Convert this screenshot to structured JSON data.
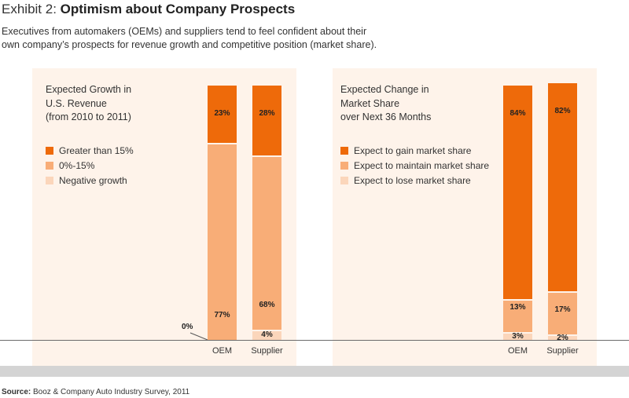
{
  "header": {
    "exhibit_prefix": "Exhibit 2: ",
    "exhibit_title": "Optimism about Company Prospects",
    "subtitle": "Executives from automakers (OEMs) and suppliers tend to feel confident about their own company’s prospects for revenue growth and competitive position (market share)."
  },
  "footer": {
    "source_label": "Source:",
    "source_text": " Booz & Company Auto Industry Survey, 2011"
  },
  "colors": {
    "dark": "#ee6a0a",
    "mid": "#f8ad77",
    "light": "#fbd6bb",
    "panel": "#fef3ea"
  },
  "chart_data": [
    {
      "type": "bar",
      "stacked": true,
      "title": "Expected Growth in\nU.S. Revenue\n(from 2010 to 2011)",
      "categories": [
        "OEM",
        "Supplier"
      ],
      "ylim": [
        0,
        100
      ],
      "series": [
        {
          "name": "Negative growth",
          "values": [
            0,
            4
          ],
          "labels": [
            "0%",
            "4%"
          ]
        },
        {
          "name": "0%-15%",
          "values": [
            77,
            68
          ],
          "labels": [
            "77%",
            "68%"
          ]
        },
        {
          "name": "Greater than 15%",
          "values": [
            23,
            28
          ],
          "labels": [
            "23%",
            "28%"
          ]
        }
      ],
      "legend": [
        "Greater than 15%",
        "0%-15%",
        "Negative growth"
      ]
    },
    {
      "type": "bar",
      "stacked": true,
      "title": "Expected Change in\nMarket Share\nover Next 36 Months",
      "categories": [
        "OEM",
        "Supplier"
      ],
      "ylim": [
        0,
        100
      ],
      "series": [
        {
          "name": "Expect to lose market share",
          "values": [
            3,
            2
          ],
          "labels": [
            "3%",
            "2%"
          ]
        },
        {
          "name": "Expect to maintain market share",
          "values": [
            13,
            17
          ],
          "labels": [
            "13%",
            "17%"
          ]
        },
        {
          "name": "Expect to gain market share",
          "values": [
            84,
            82
          ],
          "labels": [
            "84%",
            "82%"
          ]
        }
      ],
      "legend": [
        "Expect to gain market share",
        "Expect to maintain market share",
        "Expect to lose market share"
      ]
    }
  ]
}
